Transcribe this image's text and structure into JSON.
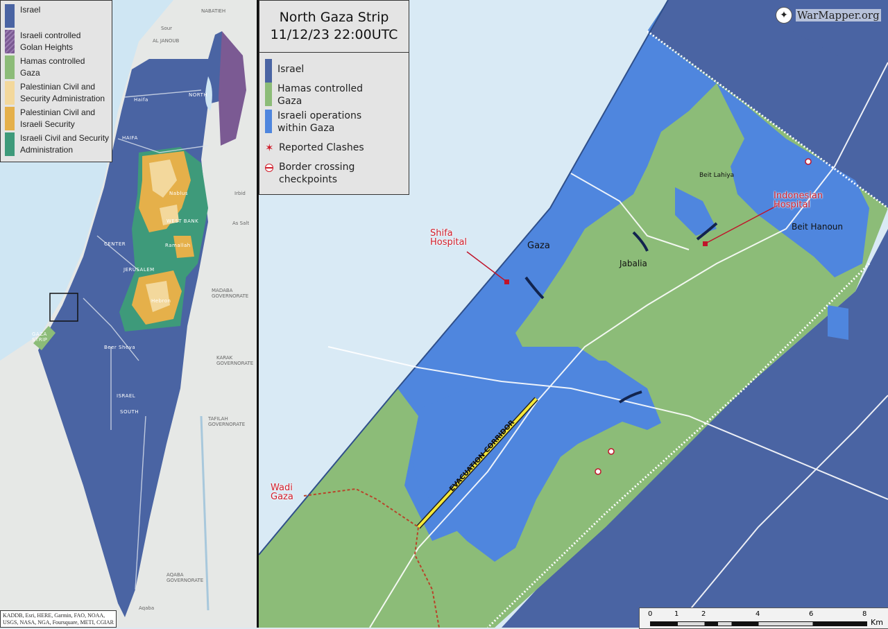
{
  "left_map": {
    "legend": [
      {
        "label": "Israel",
        "color": "#4a64a3"
      },
      {
        "label": "Israeli controlled Golan Heights",
        "color": "#7b5a93"
      },
      {
        "label": "Hamas controlled Gaza",
        "color": "#8cbc78"
      },
      {
        "label": "Palestinian Civil and Security Administration",
        "color": "#f3d89c"
      },
      {
        "label": "Palestinian Civil and Israeli Security",
        "color": "#e5b04a"
      },
      {
        "label": "Israeli Civil and Security Administration",
        "color": "#3e9a7a"
      }
    ],
    "place_labels": {
      "nabatieh": "NABATIEH",
      "al_janoub": "AL JANOUB",
      "sour": "Sour",
      "haifa_city": "Haifa",
      "haifa": "HAIFA",
      "north": "NORTH",
      "center": "CENTER",
      "jerusalem": "JERUSALEM",
      "west_bank": "WEST BANK",
      "nablus": "Nablus",
      "ramallah": "Ramallah",
      "hebron": "Hebron",
      "beer_sheva": "Beer Sheva",
      "israel": "ISRAEL",
      "south": "SOUTH",
      "gaza_strip": "GAZA STRIP",
      "madaba": "MADABA GOVERNORATE",
      "karak": "KARAK GOVERNORATE",
      "tafilah": "TAFILAH GOVERNORATE",
      "aqaba": "AQABA GOVERNORATE",
      "irbid": "Irbid",
      "as_salt": "As Salt",
      "aqaba_city": "Aqaba"
    },
    "attribution": "KADDB, Esri, HERE, Garmin, FAO, NOAA, USGS, NASA, NGA, Foursquare, METI, CGIAR"
  },
  "main_map": {
    "title_line1": "North Gaza Strip",
    "title_line2": "11/12/23 22:00UTC",
    "legend": [
      {
        "label": "Israel",
        "color": "#4a64a3"
      },
      {
        "label": "Hamas controlled Gaza",
        "color": "#8cbc78"
      },
      {
        "label": "Israeli operations within Gaza",
        "color": "#4f86de"
      },
      {
        "label": "Reported Clashes",
        "icon": "red-star-icon",
        "color": "#d01c2a"
      },
      {
        "label": "Border crossing checkpoints",
        "icon": "no-entry-icon",
        "color": "#d01c2a"
      }
    ],
    "brand": "WarMapper.org",
    "places": {
      "gaza": "Gaza",
      "jabalia": "Jabalia",
      "beit_lahiya": "Beit Lahiya",
      "beit_hanoun": "Beit Hanoun"
    },
    "annotations": {
      "shifa": "Shifa Hospital",
      "indonesian": "Indonesian Hospital",
      "wadi_gaza": "Wadi Gaza",
      "corridor": "EVACUATION CORRIDOR"
    },
    "scale": {
      "ticks": [
        "0",
        "1",
        "2",
        "4",
        "6",
        "8"
      ],
      "unit": "Km"
    }
  }
}
